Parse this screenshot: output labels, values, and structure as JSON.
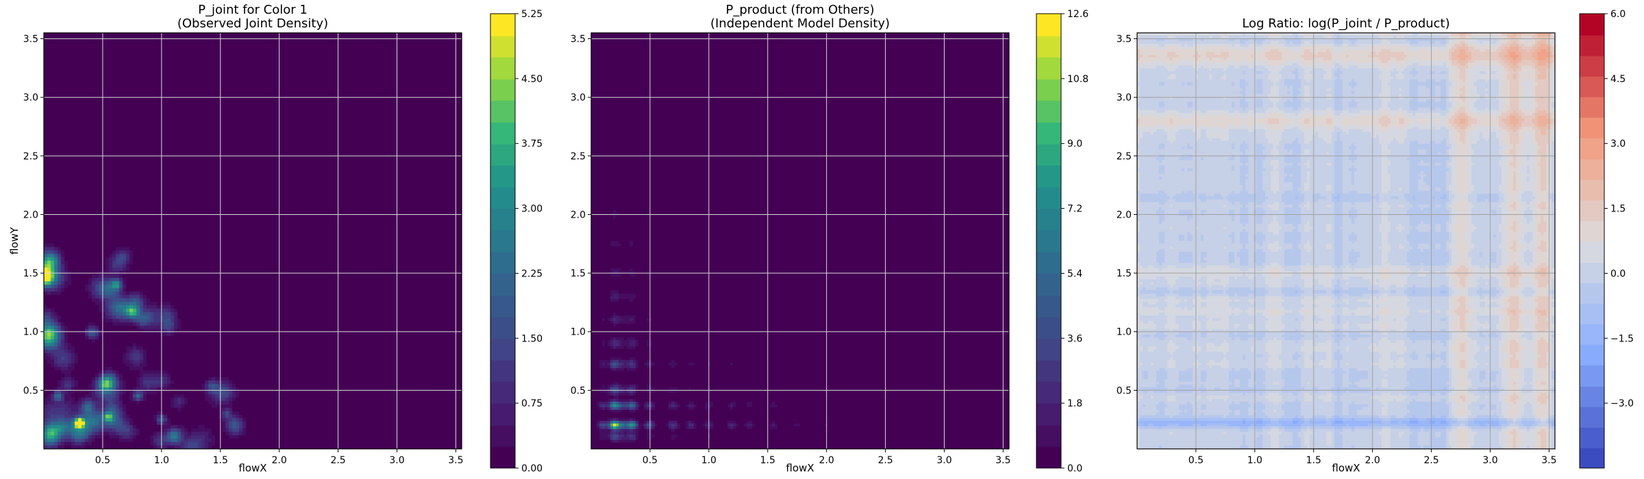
{
  "chart_data": [
    {
      "type": "heatmap",
      "title": "P_joint for Color 1\n(Observed Joint Density)",
      "xlabel": "flowX",
      "ylabel": "flowY",
      "xlim": [
        0.0,
        3.55
      ],
      "ylim": [
        0.0,
        3.55
      ],
      "x_ticks": [
        "0.5",
        "1.0",
        "1.5",
        "2.0",
        "2.5",
        "3.0",
        "3.5"
      ],
      "y_ticks": [
        "0.5",
        "1.0",
        "1.5",
        "2.0",
        "2.5",
        "3.0",
        "3.5"
      ],
      "grid": true,
      "colormap": "viridis",
      "colorbar": {
        "min": 0.0,
        "max": 5.25,
        "ticks": [
          "0.00",
          "0.75",
          "1.50",
          "2.25",
          "3.00",
          "3.75",
          "4.50",
          "5.25"
        ]
      },
      "peaks": [
        {
          "x": 0.3,
          "y": 0.22,
          "value": 5.25
        },
        {
          "x": 0.62,
          "y": 1.4,
          "value": 2.6
        },
        {
          "x": 0.12,
          "y": 0.45,
          "value": 2.4
        },
        {
          "x": 0.55,
          "y": 0.27,
          "value": 2.8
        },
        {
          "x": 0.8,
          "y": 0.45,
          "value": 2.2
        },
        {
          "x": 1.0,
          "y": 0.25,
          "value": 2.0
        },
        {
          "x": 1.55,
          "y": 0.3,
          "value": 1.4
        }
      ]
    },
    {
      "type": "heatmap",
      "title": "P_product (from Others)\n(Independent Model Density)",
      "xlabel": "flowX",
      "ylabel": "",
      "xlim": [
        0.0,
        3.55
      ],
      "ylim": [
        0.0,
        3.55
      ],
      "x_ticks": [
        "0.5",
        "1.0",
        "1.5",
        "2.0",
        "2.5",
        "3.0",
        "3.5"
      ],
      "y_ticks": [
        "0.5",
        "1.0",
        "1.5",
        "2.0",
        "2.5",
        "3.0",
        "3.5"
      ],
      "grid": true,
      "colormap": "viridis",
      "colorbar": {
        "min": 0.0,
        "max": 12.6,
        "ticks": [
          "0.0",
          "1.8",
          "3.6",
          "5.4",
          "7.2",
          "9.0",
          "10.8",
          "12.6"
        ]
      },
      "peaks": [
        {
          "x": 0.2,
          "y": 0.2,
          "value": 12.6
        },
        {
          "x": 0.35,
          "y": 0.2,
          "value": 7.5
        },
        {
          "x": 0.2,
          "y": 0.37,
          "value": 7.0
        },
        {
          "x": 0.35,
          "y": 0.37,
          "value": 4.5
        }
      ]
    },
    {
      "type": "heatmap",
      "title": "Log Ratio: log(P_joint / P_product)",
      "xlabel": "flowX",
      "ylabel": "",
      "xlim": [
        0.0,
        3.55
      ],
      "ylim": [
        0.0,
        3.55
      ],
      "x_ticks": [
        "0.5",
        "1.0",
        "1.5",
        "2.0",
        "2.5",
        "3.0",
        "3.5"
      ],
      "y_ticks": [
        "0.5",
        "1.0",
        "1.5",
        "2.0",
        "2.5",
        "3.0",
        "3.5"
      ],
      "grid": true,
      "colormap": "coolwarm",
      "colorbar": {
        "min": -4.5,
        "max": 6.0,
        "ticks": [
          "6.0",
          "4.5",
          "3.0",
          "1.5",
          "0.0",
          "−1.5",
          "−3.0"
        ]
      }
    }
  ]
}
